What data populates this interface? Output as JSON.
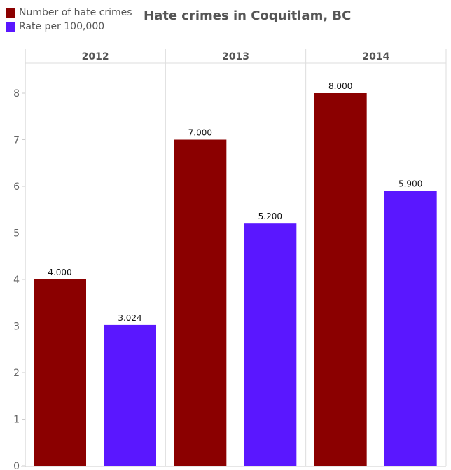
{
  "chart_data": {
    "type": "bar",
    "title": "Hate crimes in Coquitlam, BC",
    "categories": [
      "2012",
      "2013",
      "2014"
    ],
    "series": [
      {
        "name": "Number of hate crimes",
        "color": "#8b0000",
        "values": [
          4,
          7,
          8
        ],
        "labels": [
          "4.000",
          "7.000",
          "8.000"
        ]
      },
      {
        "name": "Rate per 100,000",
        "color": "#5a17ff",
        "values": [
          3.024,
          5.2,
          5.9
        ],
        "labels": [
          "3.024",
          "5.200",
          "5.900"
        ]
      }
    ],
    "yticks": [
      "0",
      "1",
      "2",
      "3",
      "4",
      "5",
      "6",
      "7",
      "8"
    ],
    "ylim": [
      0,
      8.8
    ],
    "legend": "top-left",
    "grid": false
  }
}
